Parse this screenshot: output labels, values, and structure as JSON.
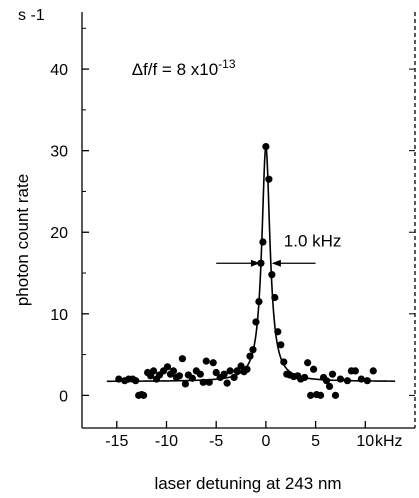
{
  "chart_data": {
    "type": "scatter",
    "title": "",
    "xlabel": "laser detuning at 243 nm",
    "ylabel": "photon count rate",
    "x_unit": "kHz",
    "y_unit": "s -1",
    "xlim": [
      -18.5,
      15
    ],
    "ylim": [
      -4,
      47
    ],
    "xticks": [
      -15,
      -10,
      -5,
      0,
      5,
      10
    ],
    "xtick_labels": [
      "-15",
      "-10",
      "-5",
      "0",
      "5",
      "10"
    ],
    "yticks": [
      0,
      10,
      20,
      30,
      40
    ],
    "ytick_labels": [
      "0",
      "10",
      "20",
      "30",
      "40"
    ],
    "grid": false,
    "legend": "none",
    "series": [
      {
        "kind": "points",
        "color": "#000000",
        "points": [
          [
            -14.8,
            2
          ],
          [
            -14.2,
            1.8
          ],
          [
            -13.8,
            2
          ],
          [
            -13.4,
            2
          ],
          [
            -13.1,
            1.8
          ],
          [
            -12.8,
            0
          ],
          [
            -12.5,
            0.1
          ],
          [
            -12.3,
            0
          ],
          [
            -11.9,
            2.8
          ],
          [
            -11.6,
            2.4
          ],
          [
            -11.3,
            3
          ],
          [
            -11.0,
            2
          ],
          [
            -10.7,
            2.5
          ],
          [
            -10.3,
            3
          ],
          [
            -9.9,
            3.5
          ],
          [
            -9.6,
            2.6
          ],
          [
            -9.3,
            3
          ],
          [
            -9.0,
            2.2
          ],
          [
            -8.7,
            2.4
          ],
          [
            -8.4,
            4.5
          ],
          [
            -8.1,
            1.4
          ],
          [
            -7.8,
            2.5
          ],
          [
            -7.4,
            2.1
          ],
          [
            -7.0,
            3
          ],
          [
            -6.6,
            2.6
          ],
          [
            -6.3,
            1.6
          ],
          [
            -6.0,
            4.2
          ],
          [
            -5.7,
            1.6
          ],
          [
            -5.3,
            4
          ],
          [
            -5.0,
            2.8
          ],
          [
            -4.6,
            2.2
          ],
          [
            -4.2,
            2.6
          ],
          [
            -3.9,
            1.5
          ],
          [
            -3.6,
            3
          ],
          [
            -3.2,
            2.2
          ],
          [
            -2.9,
            3
          ],
          [
            -2.5,
            3.6
          ],
          [
            -2.2,
            2.9
          ],
          [
            -1.9,
            3.2
          ],
          [
            -1.6,
            4.8
          ],
          [
            -1.3,
            5.6
          ],
          [
            -1.0,
            9
          ],
          [
            -0.7,
            11.5
          ],
          [
            -0.5,
            16.2
          ],
          [
            -0.3,
            18.8
          ],
          [
            0.0,
            30.5
          ],
          [
            0.3,
            26.5
          ],
          [
            0.6,
            14.8
          ],
          [
            0.9,
            12
          ],
          [
            1.2,
            7.8
          ],
          [
            1.5,
            6.2
          ],
          [
            1.8,
            4.1
          ],
          [
            2.1,
            2.6
          ],
          [
            2.4,
            2.5
          ],
          [
            2.8,
            2.3
          ],
          [
            3.2,
            2.4
          ],
          [
            3.5,
            2
          ],
          [
            3.9,
            2.2
          ],
          [
            4.2,
            4
          ],
          [
            4.5,
            0
          ],
          [
            4.8,
            3.2
          ],
          [
            5.1,
            0.1
          ],
          [
            5.5,
            0
          ],
          [
            5.8,
            2.2
          ],
          [
            6.1,
            1.8
          ],
          [
            6.4,
            1.1
          ],
          [
            6.7,
            2.6
          ],
          [
            7.0,
            0
          ],
          [
            7.5,
            2
          ],
          [
            8.2,
            1.8
          ],
          [
            8.6,
            3
          ],
          [
            9.0,
            3
          ],
          [
            9.6,
            2
          ],
          [
            10.2,
            1.8
          ],
          [
            10.8,
            3
          ]
        ]
      },
      {
        "kind": "fit",
        "model": "lorentzian",
        "color": "#000000",
        "x_range": [
          -16,
          13
        ],
        "baseline": 1.7,
        "amplitude": 28.8,
        "center": 0.0,
        "fwhm": 1.0
      }
    ],
    "annotations": [
      {
        "text": "Δf/f = 8 x10",
        "superscript": "-13",
        "x": -13.5,
        "y": 40
      },
      {
        "text": "1.0 kHz",
        "x": 1.8,
        "y": 19
      }
    ],
    "width_marker": {
      "y": 16.2,
      "from": -0.5,
      "to": 0.5,
      "arm_length": 4.5
    }
  }
}
